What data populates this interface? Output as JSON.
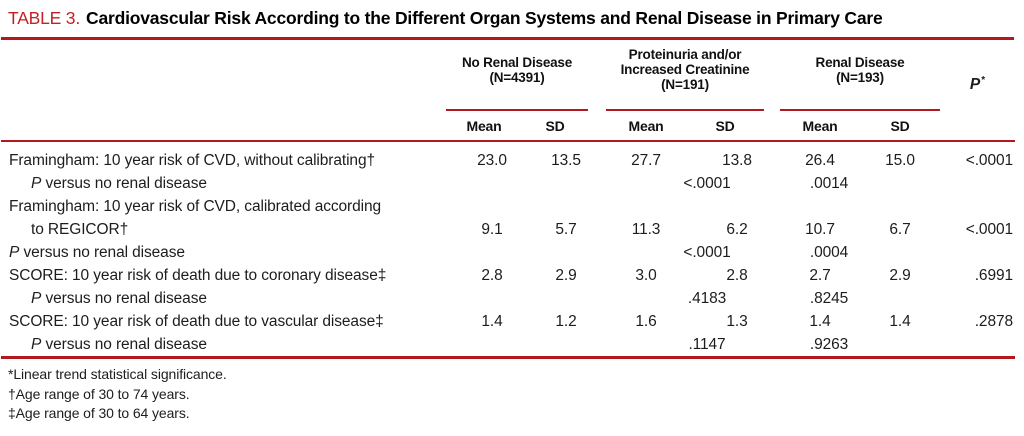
{
  "title": {
    "label": "TABLE 3.",
    "text": "Cardiovascular Risk According to the Different Organ Systems and Renal Disease in Primary Care"
  },
  "colors": {
    "rule_red": "#b2191f",
    "title_red": "#c42127",
    "text_ink": "#1d1d1d"
  },
  "table": {
    "groups": [
      {
        "lines": [
          "No Renal Disease",
          "(N=4391)"
        ],
        "mean_label": "Mean",
        "sd_label": "SD"
      },
      {
        "lines": [
          "Proteinuria and/or",
          "Increased Creatinine",
          "(N=191)"
        ],
        "mean_label": "Mean",
        "sd_label": "SD"
      },
      {
        "lines": [
          "Renal Disease",
          "(N=193)"
        ],
        "mean_label": "Mean",
        "sd_label": "SD"
      }
    ],
    "p_header": "P",
    "p_header_marker": "*",
    "rows": [
      {
        "type": "data",
        "indent": false,
        "label": "Framingham: 10 year risk of CVD, without calibrating†",
        "g1_mean": "23.0",
        "g1_sd": "13.5",
        "g2_mean": "27.7",
        "g2_sd": "13.8",
        "g3_mean": "26.4",
        "g3_sd": "15.0",
        "p": "<.0001"
      },
      {
        "type": "pversus",
        "indent": true,
        "label_prefix": "P",
        "label": " versus no renal disease",
        "g2_p": "<.0001",
        "g3_p": ".0014"
      },
      {
        "type": "label",
        "indent": false,
        "label": "Framingham: 10 year risk of CVD, calibrated according"
      },
      {
        "type": "data",
        "indent": true,
        "label": "to REGICOR†",
        "g1_mean": "9.1",
        "g1_sd": "5.7",
        "g2_mean": "11.3",
        "g2_sd": "6.2",
        "g3_mean": "10.7",
        "g3_sd": "6.7",
        "p": "<.0001"
      },
      {
        "type": "pversus",
        "indent": false,
        "label_prefix": "P",
        "label": " versus no renal disease",
        "g2_p": "<.0001",
        "g3_p": ".0004"
      },
      {
        "type": "data",
        "indent": false,
        "label": "SCORE: 10 year risk of death due to coronary disease‡",
        "g1_mean": "2.8",
        "g1_sd": "2.9",
        "g2_mean": "3.0",
        "g2_sd": "2.8",
        "g3_mean": "2.7",
        "g3_sd": "2.9",
        "p": ".6991"
      },
      {
        "type": "pversus",
        "indent": true,
        "label_prefix": "P",
        "label": " versus no renal disease",
        "g2_p": ".4183",
        "g3_p": ".8245"
      },
      {
        "type": "data",
        "indent": false,
        "label": "SCORE: 10 year risk of death due to vascular disease‡",
        "g1_mean": "1.4",
        "g1_sd": "1.2",
        "g2_mean": "1.6",
        "g2_sd": "1.3",
        "g3_mean": "1.4",
        "g3_sd": "1.4",
        "p": ".2878"
      },
      {
        "type": "pversus",
        "indent": true,
        "label_prefix": "P",
        "label": " versus no renal disease",
        "g2_p": ".1147",
        "g3_p": ".9263"
      }
    ]
  },
  "footnotes": [
    "*Linear trend statistical significance.",
    "†Age range of 30 to 74 years.",
    "‡Age range of 30 to 64 years."
  ]
}
